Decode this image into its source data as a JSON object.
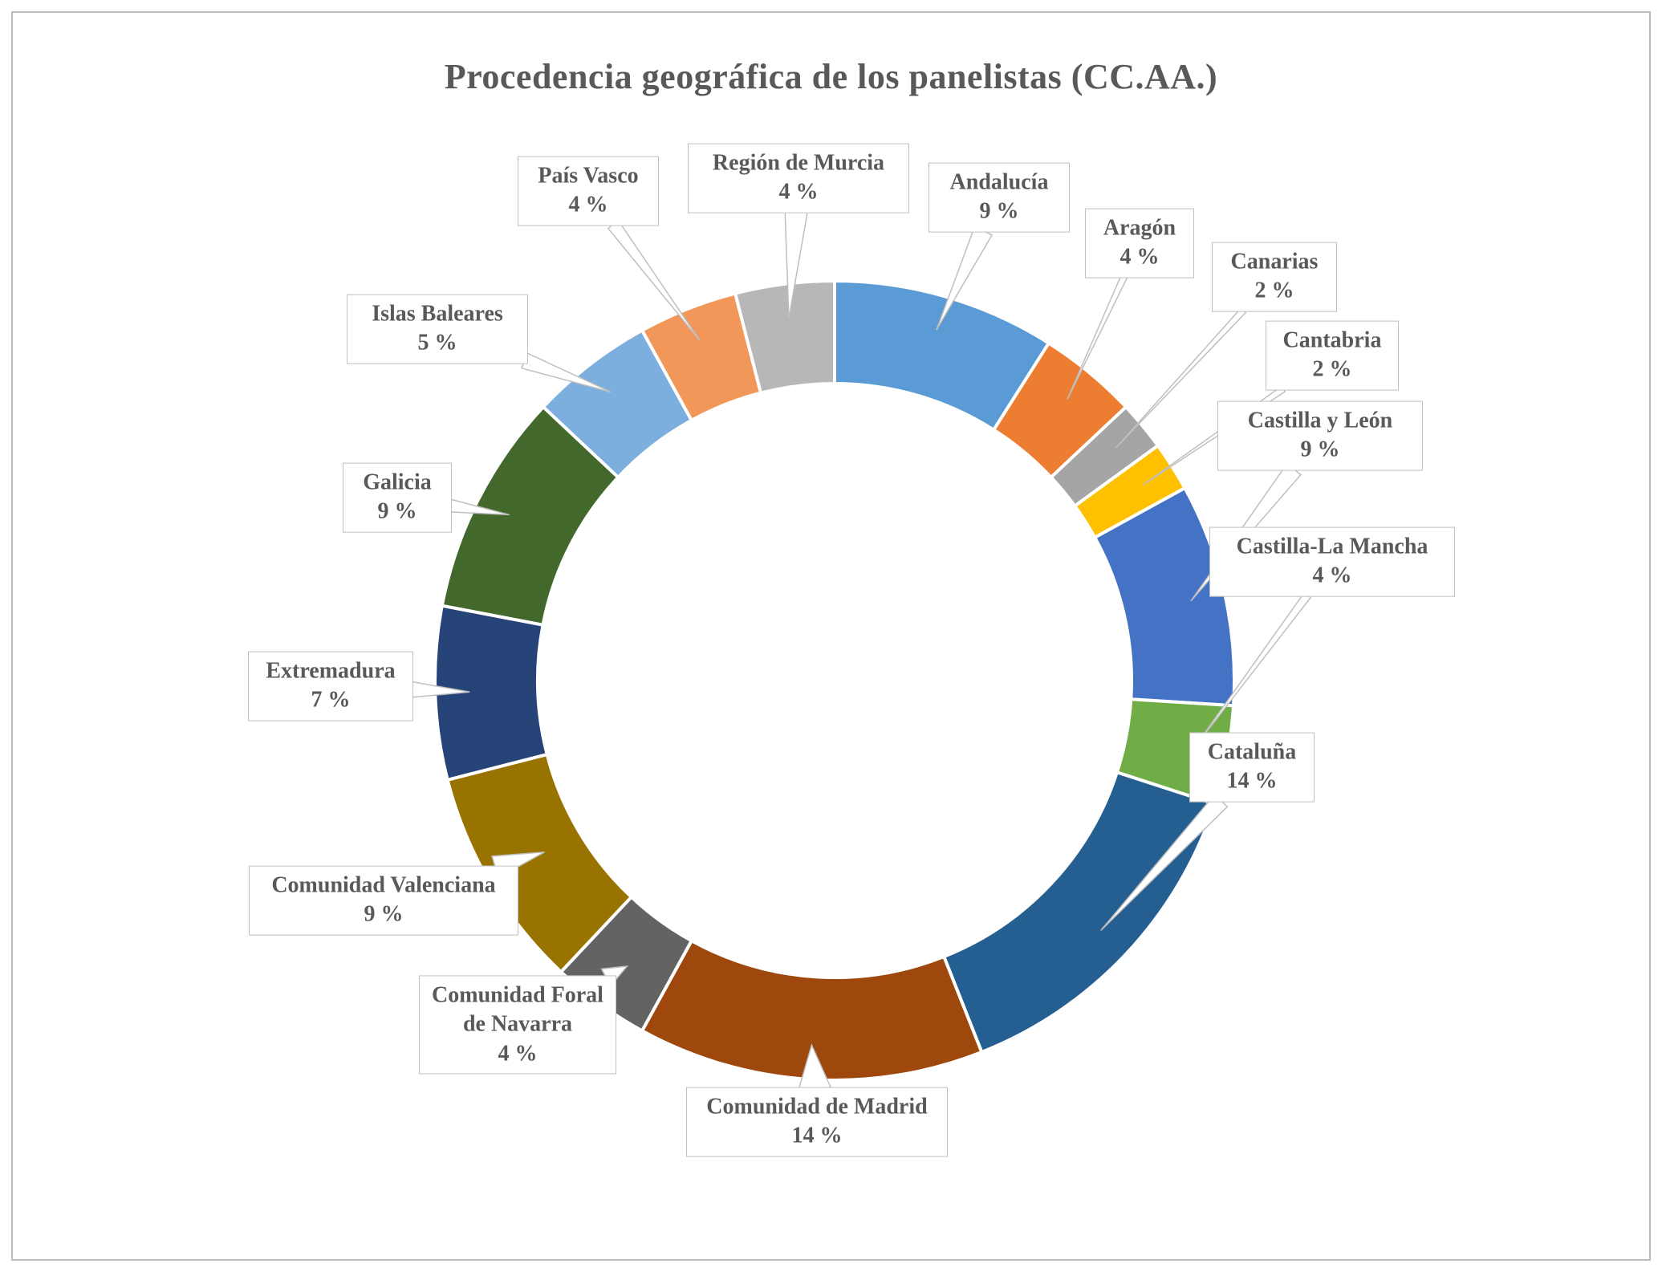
{
  "chart_data": {
    "type": "pie",
    "subtype": "doughnut",
    "title": "Procedencia geográfica de los panelistas (CC.AA.)",
    "unit": "%",
    "categories": [
      "Andalucía",
      "Aragón",
      "Canarias",
      "Cantabria",
      "Castilla y León",
      "Castilla-La Mancha",
      "Cataluña",
      "Comunidad de Madrid",
      "Comunidad Foral de Navarra",
      "Comunidad Valenciana",
      "Extremadura",
      "Galicia",
      "Islas Baleares",
      "País Vasco",
      "Región de Murcia"
    ],
    "values": [
      9,
      4,
      2,
      2,
      9,
      4,
      14,
      14,
      4,
      9,
      7,
      9,
      5,
      4,
      4
    ],
    "colors": [
      "#5B9BD5",
      "#ED7D31",
      "#A5A5A5",
      "#FFC000",
      "#4472C4",
      "#70AD47",
      "#255E91",
      "#9E480E",
      "#636363",
      "#997300",
      "#264478",
      "#43682B",
      "#7CAFDD",
      "#F1975A",
      "#B7B7B7"
    ],
    "label_format": "{name}\n{value} %",
    "start_angle_deg": 0,
    "direction": "clockwise",
    "donut_hole_ratio": 0.74,
    "legend": "none",
    "data_labels": "callouts",
    "title_color": "#595959",
    "label_color": "#595959",
    "callout_border_color": "#BFBFBF",
    "slice_border_color": "#FFFFFF",
    "frame_border_color": "#BDBDBD"
  }
}
